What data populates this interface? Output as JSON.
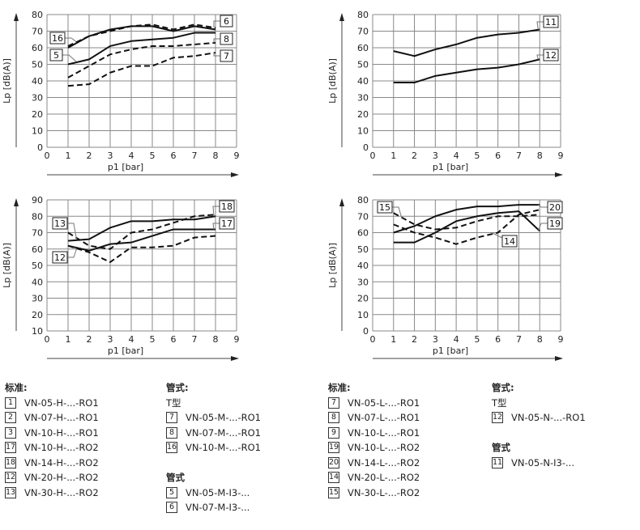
{
  "chart_data": [
    {
      "type": "line",
      "title": "",
      "xlabel": "p1 [bar]",
      "ylabel": "Lp [dB(A)]",
      "xlim": [
        0,
        9
      ],
      "ylim": [
        0,
        80
      ],
      "ytick_step": 10,
      "grid": true,
      "x": [
        1,
        2,
        3,
        4,
        5,
        6,
        7,
        8
      ],
      "series": [
        {
          "name": "16",
          "style": "solid",
          "values": [
            60,
            67,
            71,
            73,
            73,
            70,
            73,
            71
          ]
        },
        {
          "name": "6",
          "style": "dashed",
          "values": [
            61,
            67,
            70,
            73,
            74,
            71,
            74,
            72
          ]
        },
        {
          "name": "5",
          "style": "solid",
          "values": [
            50,
            53,
            61,
            64,
            65,
            66,
            69,
            69
          ]
        },
        {
          "name": "8",
          "style": "dashed",
          "values": [
            42,
            49,
            56,
            59,
            61,
            61,
            62,
            63
          ]
        },
        {
          "name": "7",
          "style": "dashed",
          "values": [
            37,
            38,
            45,
            49,
            49,
            54,
            55,
            57
          ]
        }
      ]
    },
    {
      "type": "line",
      "title": "",
      "xlabel": "p1 [bar]",
      "ylabel": "Lp [dB(A)]",
      "xlim": [
        0,
        9
      ],
      "ylim": [
        0,
        80
      ],
      "ytick_step": 10,
      "grid": true,
      "x": [
        1,
        2,
        3,
        4,
        5,
        6,
        7,
        8
      ],
      "series": [
        {
          "name": "11",
          "style": "solid",
          "values": [
            58,
            55,
            59,
            62,
            66,
            68,
            69,
            71
          ]
        },
        {
          "name": "12",
          "style": "solid",
          "values": [
            39,
            39,
            43,
            45,
            47,
            48,
            50,
            53
          ]
        }
      ]
    },
    {
      "type": "line",
      "title": "",
      "xlabel": "p1 [bar]",
      "ylabel": "Lp [dB(A)]",
      "xlim": [
        0,
        9
      ],
      "ylim": [
        10,
        90
      ],
      "ytick_step": 10,
      "grid": true,
      "x": [
        1,
        2,
        3,
        4,
        5,
        6,
        7,
        8
      ],
      "series": [
        {
          "name": "18",
          "style": "solid",
          "values": [
            65,
            66,
            73,
            77,
            77,
            78,
            78,
            80
          ]
        },
        {
          "name": "17",
          "style": "solid",
          "values": [
            62,
            59,
            63,
            64,
            68,
            72,
            72,
            72
          ]
        },
        {
          "name": "13",
          "style": "dashed",
          "values": [
            70,
            62,
            60,
            70,
            72,
            76,
            80,
            81
          ]
        },
        {
          "name": "12",
          "style": "dashed",
          "values": [
            62,
            58,
            52,
            61,
            61,
            62,
            67,
            68
          ]
        }
      ]
    },
    {
      "type": "line",
      "title": "",
      "xlabel": "p1 [bar]",
      "ylabel": "Lp [dB(A)]",
      "xlim": [
        0,
        9
      ],
      "ylim": [
        0,
        80
      ],
      "ytick_step": 10,
      "grid": true,
      "x": [
        1,
        2,
        3,
        4,
        5,
        6,
        7,
        8
      ],
      "series": [
        {
          "name": "20",
          "style": "solid",
          "values": [
            60,
            64,
            70,
            74,
            76,
            76,
            77,
            77
          ]
        },
        {
          "name": "19",
          "style": "solid",
          "values": [
            54,
            54,
            60,
            67,
            70,
            72,
            73,
            61
          ]
        },
        {
          "name": "15",
          "style": "dashed",
          "values": [
            72,
            65,
            62,
            63,
            67,
            70,
            70,
            71
          ]
        },
        {
          "name": "14",
          "style": "dashed",
          "values": [
            65,
            60,
            57,
            53,
            57,
            60,
            71,
            74
          ]
        }
      ]
    }
  ],
  "legend": [
    {
      "groups": [
        {
          "title": "标准:",
          "items": [
            {
              "num": "1",
              "text": "VN-05-H-...-RO1"
            },
            {
              "num": "2",
              "text": "VN-07-H-...-RO1"
            },
            {
              "num": "3",
              "text": "VN-10-H-...-RO1"
            },
            {
              "num": "17",
              "text": "VN-10-H-...-RO2"
            },
            {
              "num": "18",
              "text": "VN-14-H-...-RO2"
            },
            {
              "num": "12",
              "text": "VN-20-H-...-RO2"
            },
            {
              "num": "13",
              "text": "VN-30-H-...-RO2"
            }
          ]
        }
      ]
    },
    {
      "groups": [
        {
          "title": "管式:",
          "subtitle": "T型",
          "items": [
            {
              "num": "7",
              "text": "VN-05-M-...-RO1"
            },
            {
              "num": "8",
              "text": "VN-07-M-...-RO1"
            },
            {
              "num": "16",
              "text": "VN-10-M-...-RO1"
            }
          ]
        },
        {
          "title": "管式",
          "items": [
            {
              "num": "5",
              "text": "VN-05-M-I3-..."
            },
            {
              "num": "6",
              "text": "VN-07-M-I3-..."
            }
          ]
        }
      ]
    },
    {
      "groups": [
        {
          "title": "标准:",
          "items": [
            {
              "num": "7",
              "text": "VN-05-L-...-RO1"
            },
            {
              "num": "8",
              "text": "VN-07-L-...-RO1"
            },
            {
              "num": "9",
              "text": "VN-10-L-...-RO1"
            },
            {
              "num": "19",
              "text": "VN-10-L-...-RO2"
            },
            {
              "num": "20",
              "text": "VN-14-L-...-RO2"
            },
            {
              "num": "14",
              "text": "VN-20-L-...-RO2"
            },
            {
              "num": "15",
              "text": "VN-30-L-...-RO2"
            }
          ]
        }
      ]
    },
    {
      "groups": [
        {
          "title": "管式:",
          "subtitle": "T型",
          "items": [
            {
              "num": "12",
              "text": "VN-05-N-...-RO1"
            }
          ]
        },
        {
          "title": "管式",
          "items": [
            {
              "num": "11",
              "text": "VN-05-N-I3-..."
            }
          ]
        }
      ]
    }
  ]
}
